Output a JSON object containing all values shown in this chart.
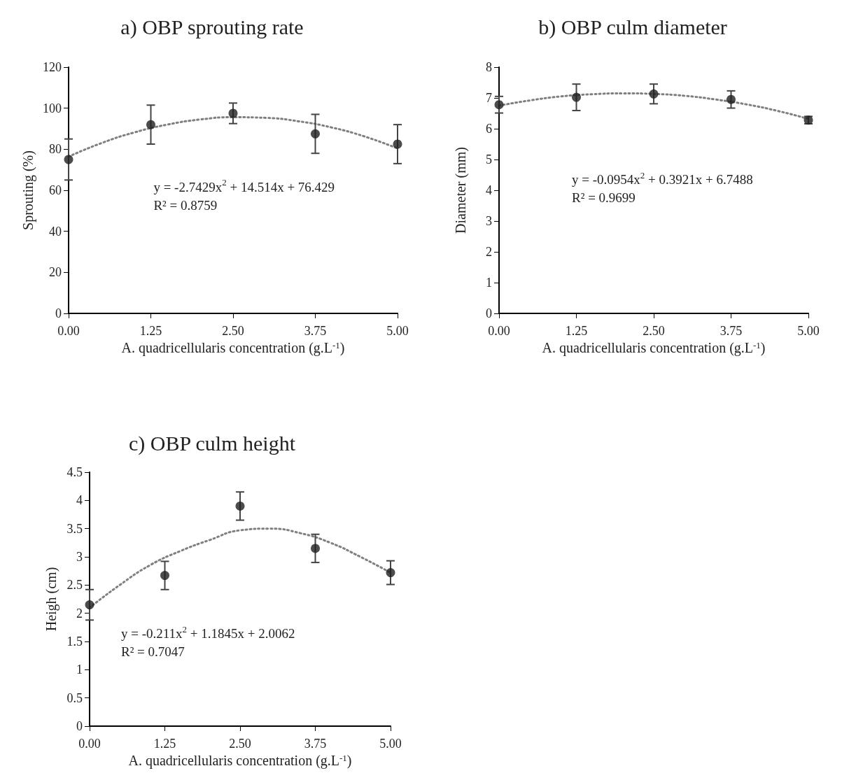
{
  "chart_data": [
    {
      "type": "scatter",
      "title": "a) OBP sprouting rate",
      "xlabel": "A. quadricellularis concentration (g.L$^{-1}$)",
      "ylabel": "Sprouting (%)",
      "annotations": [
        "y = -2.7429x$^{2}$ + 14.514x + 76.429",
        "R² = 0.8759"
      ],
      "xlim": [
        0,
        5
      ],
      "xticks": [
        {
          "value": 0,
          "label": "0.00"
        },
        {
          "value": 1.25,
          "label": "1.25"
        },
        {
          "value": 2.5,
          "label": "2.50"
        },
        {
          "value": 3.75,
          "label": "3.75"
        },
        {
          "value": 5,
          "label": "5.00"
        }
      ],
      "ylim": [
        0,
        120
      ],
      "yticks": [
        0,
        20,
        40,
        60,
        80,
        100,
        120
      ],
      "series": [
        {
          "color": "#1f1f1f",
          "marker": "circle",
          "x": [
            0,
            1.25,
            2.5,
            3.75,
            5
          ],
          "values": [
            75,
            92,
            97.5,
            87.5,
            82.5
          ],
          "errors": [
            10,
            9.5,
            5,
            9.5,
            9.5
          ]
        },
        {
          "type": "line",
          "color": "#7f7f7f",
          "marker": "none",
          "line_style": "dotted",
          "x": [
            0,
            0.5,
            1,
            1.5,
            2,
            2.5,
            3,
            3.5,
            4,
            4.5,
            5
          ],
          "values": [
            76.4,
            83,
            88.2,
            92,
            94.5,
            95.6,
            95.3,
            93.6,
            90.6,
            86.2,
            80.4
          ]
        }
      ]
    },
    {
      "type": "scatter",
      "title": "b) OBP culm diameter",
      "xlabel": "A. quadricellularis concentration (g.L$^{-1}$)",
      "ylabel": "Diameter (mm)",
      "annotations": [
        "y = -0.0954x$^{2}$ + 0.3921x + 6.7488",
        "R² = 0.9699"
      ],
      "xlim": [
        0,
        5
      ],
      "xticks": [
        {
          "value": 0,
          "label": "0.00"
        },
        {
          "value": 1.25,
          "label": "1.25"
        },
        {
          "value": 2.5,
          "label": "2.50"
        },
        {
          "value": 3.75,
          "label": "3.75"
        },
        {
          "value": 5,
          "label": "5.00"
        }
      ],
      "ylim": [
        0,
        8
      ],
      "yticks": [
        0,
        1,
        2,
        3,
        4,
        5,
        6,
        7,
        8
      ],
      "series": [
        {
          "color": "#1f1f1f",
          "marker": "circle",
          "x": [
            0,
            1.25,
            2.5,
            3.75,
            5
          ],
          "values": [
            6.78,
            7.02,
            7.13,
            6.95,
            6.28
          ],
          "errors": [
            0.27,
            0.43,
            0.32,
            0.28,
            0.12
          ]
        },
        {
          "type": "line",
          "color": "#7f7f7f",
          "marker": "none",
          "line_style": "dotted",
          "x": [
            0,
            0.5,
            1,
            1.5,
            2,
            2.5,
            3,
            3.5,
            4,
            4.5,
            5
          ],
          "values": [
            6.75,
            6.92,
            7.05,
            7.12,
            7.15,
            7.13,
            7.07,
            6.95,
            6.79,
            6.58,
            6.32
          ]
        }
      ]
    },
    {
      "type": "scatter",
      "title": "c) OBP culm height",
      "xlabel": "A. quadricellularis concentration (g.L$^{-1}$)",
      "ylabel": "Heigh (cm)",
      "annotations": [
        "y = -0.211x$^{2}$ + 1.1845x + 2.0062",
        "R² = 0.7047"
      ],
      "xlim": [
        0,
        5
      ],
      "xticks": [
        {
          "value": 0,
          "label": "0.00"
        },
        {
          "value": 1.25,
          "label": "1.25"
        },
        {
          "value": 2.5,
          "label": "2.50"
        },
        {
          "value": 3.75,
          "label": "3.75"
        },
        {
          "value": 5,
          "label": "5.00"
        }
      ],
      "ylim": [
        0,
        4.5
      ],
      "yticks": [
        0,
        0.5,
        1,
        1.5,
        2,
        2.5,
        3,
        3.5,
        4,
        4.5
      ],
      "series": [
        {
          "color": "#1f1f1f",
          "marker": "circle",
          "x": [
            0,
            1.25,
            2.5,
            3.75,
            5
          ],
          "values": [
            2.15,
            2.67,
            3.9,
            3.15,
            2.72
          ],
          "errors": [
            0.27,
            0.25,
            0.25,
            0.25,
            0.21
          ]
        },
        {
          "type": "line",
          "color": "#7f7f7f",
          "marker": "none",
          "line_style": "dotted",
          "x": [
            0,
            0.5,
            1,
            1.5,
            2,
            2.5,
            3,
            3.5,
            4,
            4.5,
            5
          ],
          "values": [
            2.1,
            2.5,
            2.85,
            3.1,
            3.3,
            3.47,
            3.5,
            3.42,
            3.25,
            3.0,
            2.72
          ]
        }
      ]
    }
  ]
}
